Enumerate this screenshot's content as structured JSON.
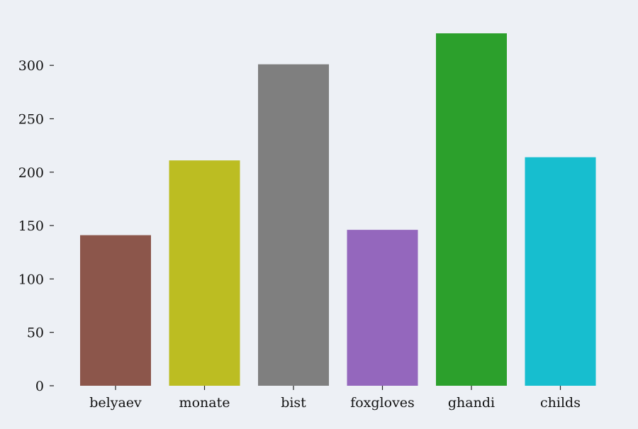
{
  "chart_data": {
    "type": "bar",
    "title": "",
    "xlabel": "",
    "ylabel": "",
    "categories": [
      "belyaev",
      "monate",
      "bist",
      "foxgloves",
      "ghandi",
      "childs"
    ],
    "values": [
      141,
      211,
      301,
      146,
      330,
      214
    ],
    "colors": [
      "#8c564b",
      "#bcbd22",
      "#7f7f7f",
      "#9467bd",
      "#2ca02c",
      "#17becf"
    ],
    "ylim": [
      0,
      330
    ],
    "yticks": [
      0,
      50,
      100,
      150,
      200,
      250,
      300
    ],
    "grid": false,
    "legend": "none"
  }
}
